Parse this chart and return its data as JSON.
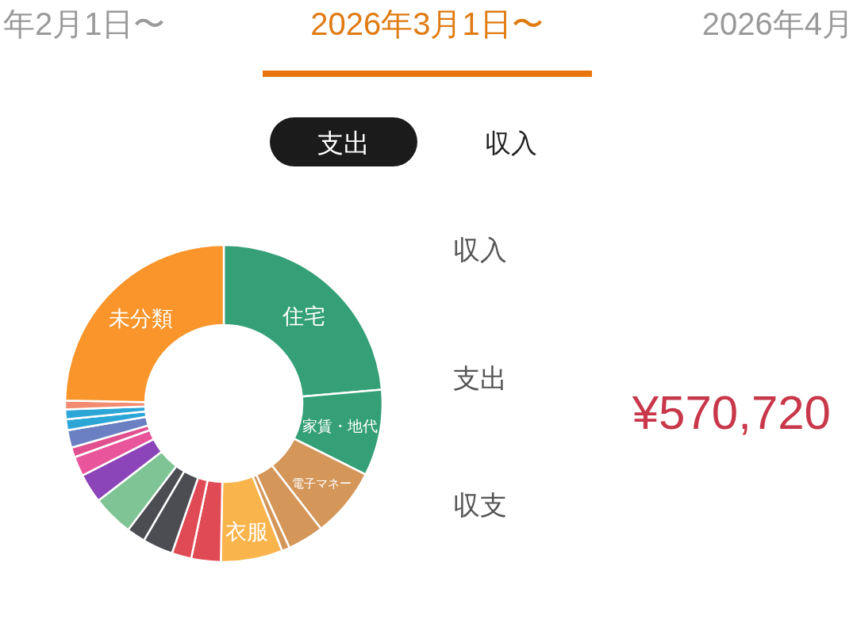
{
  "chart_data": [
    {
      "type": "donut",
      "title": "2026年3月1日〜",
      "annotations": [
        "年2月1日〜",
        "2026年4月",
        "支出",
        "収入"
      ],
      "categories": [
        "住宅",
        "家賃・地代",
        "電子マネー",
        null,
        null,
        "衣服",
        null,
        null,
        null,
        null,
        null,
        null,
        null,
        null,
        null,
        null,
        null,
        null,
        "未分類"
      ],
      "values": [
        23.6,
        8.8,
        7.1,
        3.7,
        0.8,
        6.3,
        3.0,
        2.0,
        3.1,
        1.9,
        4.2,
        3.0,
        2.0,
        1.0,
        1.8,
        1.1,
        1.0,
        0.9,
        24.7
      ],
      "colors": [
        "#35a078",
        "#35a078",
        "#d49659",
        "#d49659",
        "#d49659",
        "#f9b44b",
        "#e04a55",
        "#e04a55",
        "#4b4d52",
        "#4b4d52",
        "#7ec495",
        "#8b45b8",
        "#e8559b",
        "#e04f8e",
        "#6b80c2",
        "#2ca5d7",
        "#2ca5d7",
        "#f28b6f",
        "#f9952a"
      ]
    },
    {
      "type": "other",
      "annotations": [
        "収入",
        "支出",
        "¥570,720",
        "収支"
      ]
    }
  ]
}
